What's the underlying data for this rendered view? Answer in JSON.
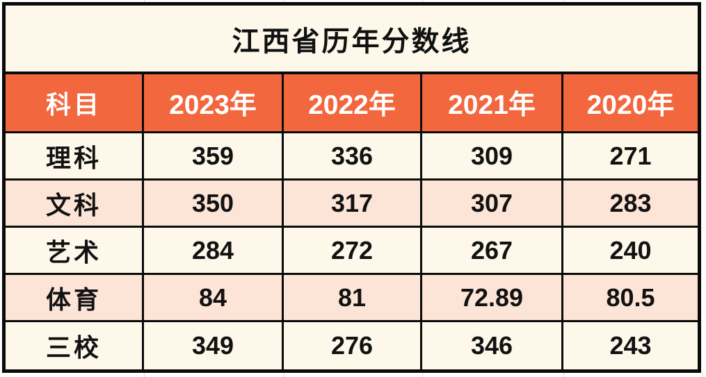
{
  "colors": {
    "orange": "#F2673D",
    "peach": "#FCE4D6",
    "cream": "#FDF8E9",
    "border": "#0A0A0A",
    "header_text": "#FFFFFF",
    "body_text": "#121212"
  },
  "chart_data": {
    "type": "table",
    "title": "江西省历年分数线",
    "columns": [
      "科目",
      "2023年",
      "2022年",
      "2021年",
      "2020年"
    ],
    "rows": [
      [
        "理科",
        359,
        336,
        309,
        271
      ],
      [
        "文科",
        350,
        317,
        307,
        283
      ],
      [
        "艺术",
        284,
        272,
        267,
        240
      ],
      [
        "体育",
        84,
        81,
        72.89,
        80.5
      ],
      [
        "三校",
        349,
        276,
        346,
        243
      ]
    ],
    "layout": {
      "header_fill": "#F2673D",
      "odd_row_fill": "#FDF8E9",
      "even_row_fill": "#FCE4D6",
      "grid": "thick black borders"
    }
  }
}
